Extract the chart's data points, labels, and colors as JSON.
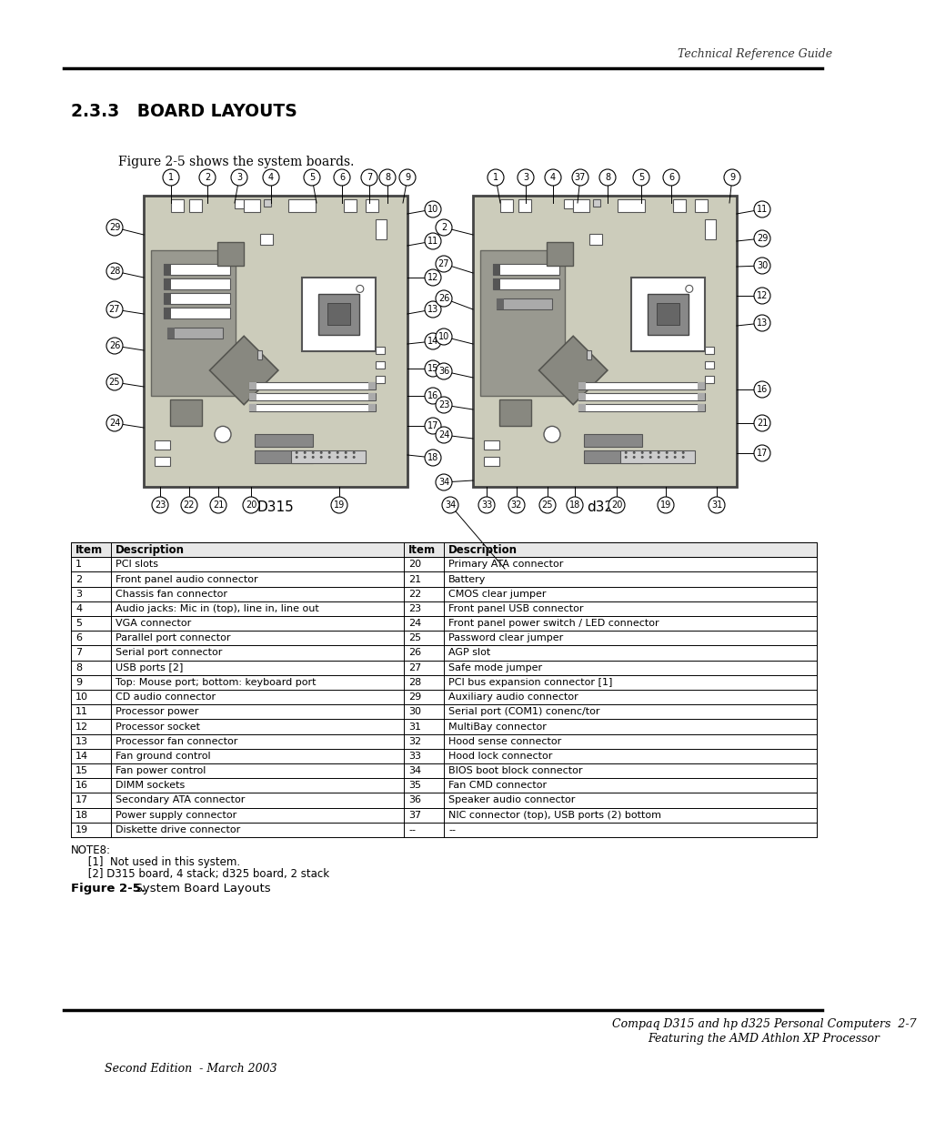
{
  "header_text": "Technical Reference Guide",
  "section_title": "2.3.3   BOARD LAYOUTS",
  "figure_intro": "Figure 2-5 shows the system boards.",
  "board_label_left": "D315",
  "board_label_right": "d325",
  "figure_caption_bold": "Figure 2-5.",
  "figure_caption_rest": "  System Board Layouts",
  "footer_line1": "Compaq D315 and hp d325 Personal Computers  2-7",
  "footer_line2": "Featuring the AMD Athlon XP Processor",
  "footer_edition": "Second Edition  - March 2003",
  "note_label": "NOTE8:",
  "note_lines": [
    "     [1]  Not used in this system.",
    "     [2] D315 board, 4 stack; d325 board, 2 stack"
  ],
  "table_headers": [
    "Item",
    "Description",
    "Item",
    "Description"
  ],
  "table_rows": [
    [
      "1",
      "PCI slots",
      "20",
      "Primary ATA connector"
    ],
    [
      "2",
      "Front panel audio connector",
      "21",
      "Battery"
    ],
    [
      "3",
      "Chassis fan connector",
      "22",
      "CMOS clear jumper"
    ],
    [
      "4",
      "Audio jacks: Mic in (top), line in, line out",
      "23",
      "Front panel USB connector"
    ],
    [
      "5",
      "VGA connector",
      "24",
      "Front panel power switch / LED connector"
    ],
    [
      "6",
      "Parallel port connector",
      "25",
      "Password clear jumper"
    ],
    [
      "7",
      "Serial port connector",
      "26",
      "AGP slot"
    ],
    [
      "8",
      "USB ports [2]",
      "27",
      "Safe mode jumper"
    ],
    [
      "9",
      "Top: Mouse port; bottom: keyboard port",
      "28",
      "PCI bus expansion connector [1]"
    ],
    [
      "10",
      "CD audio connector",
      "29",
      "Auxiliary audio connector"
    ],
    [
      "11",
      "Processor power",
      "30",
      "Serial port (COM1) conenc/tor"
    ],
    [
      "12",
      "Processor socket",
      "31",
      "MultiBay connector"
    ],
    [
      "13",
      "Processor fan connector",
      "32",
      "Hood sense connector"
    ],
    [
      "14",
      "Fan ground control",
      "33",
      "Hood lock connector"
    ],
    [
      "15",
      "Fan power control",
      "34",
      "BIOS boot block connector"
    ],
    [
      "16",
      "DIMM sockets",
      "35",
      "Fan CMD connector"
    ],
    [
      "17",
      "Secondary ATA connector",
      "36",
      "Speaker audio connector"
    ],
    [
      "18",
      "Power supply connector",
      "37",
      "NIC connector (top), USB ports (2) bottom"
    ],
    [
      "19",
      "Diskette drive connector",
      "--",
      "--"
    ]
  ],
  "bg_color": "#ffffff",
  "board_fill": "#ccccbb",
  "board_edge": "#444444",
  "board_inner_fill": "#c8c8b8",
  "pci_slot_fill": "#888888",
  "agp_fill": "#909090",
  "dimm_fill": "#bbbbaa",
  "processor_fill": "#aaaaaa",
  "processor_inner": "#888888",
  "diamond_fill": "#999990",
  "dark_block": "#888880",
  "small_box_fill": "#ccccbb",
  "connector_fill": "#aaaaaa"
}
